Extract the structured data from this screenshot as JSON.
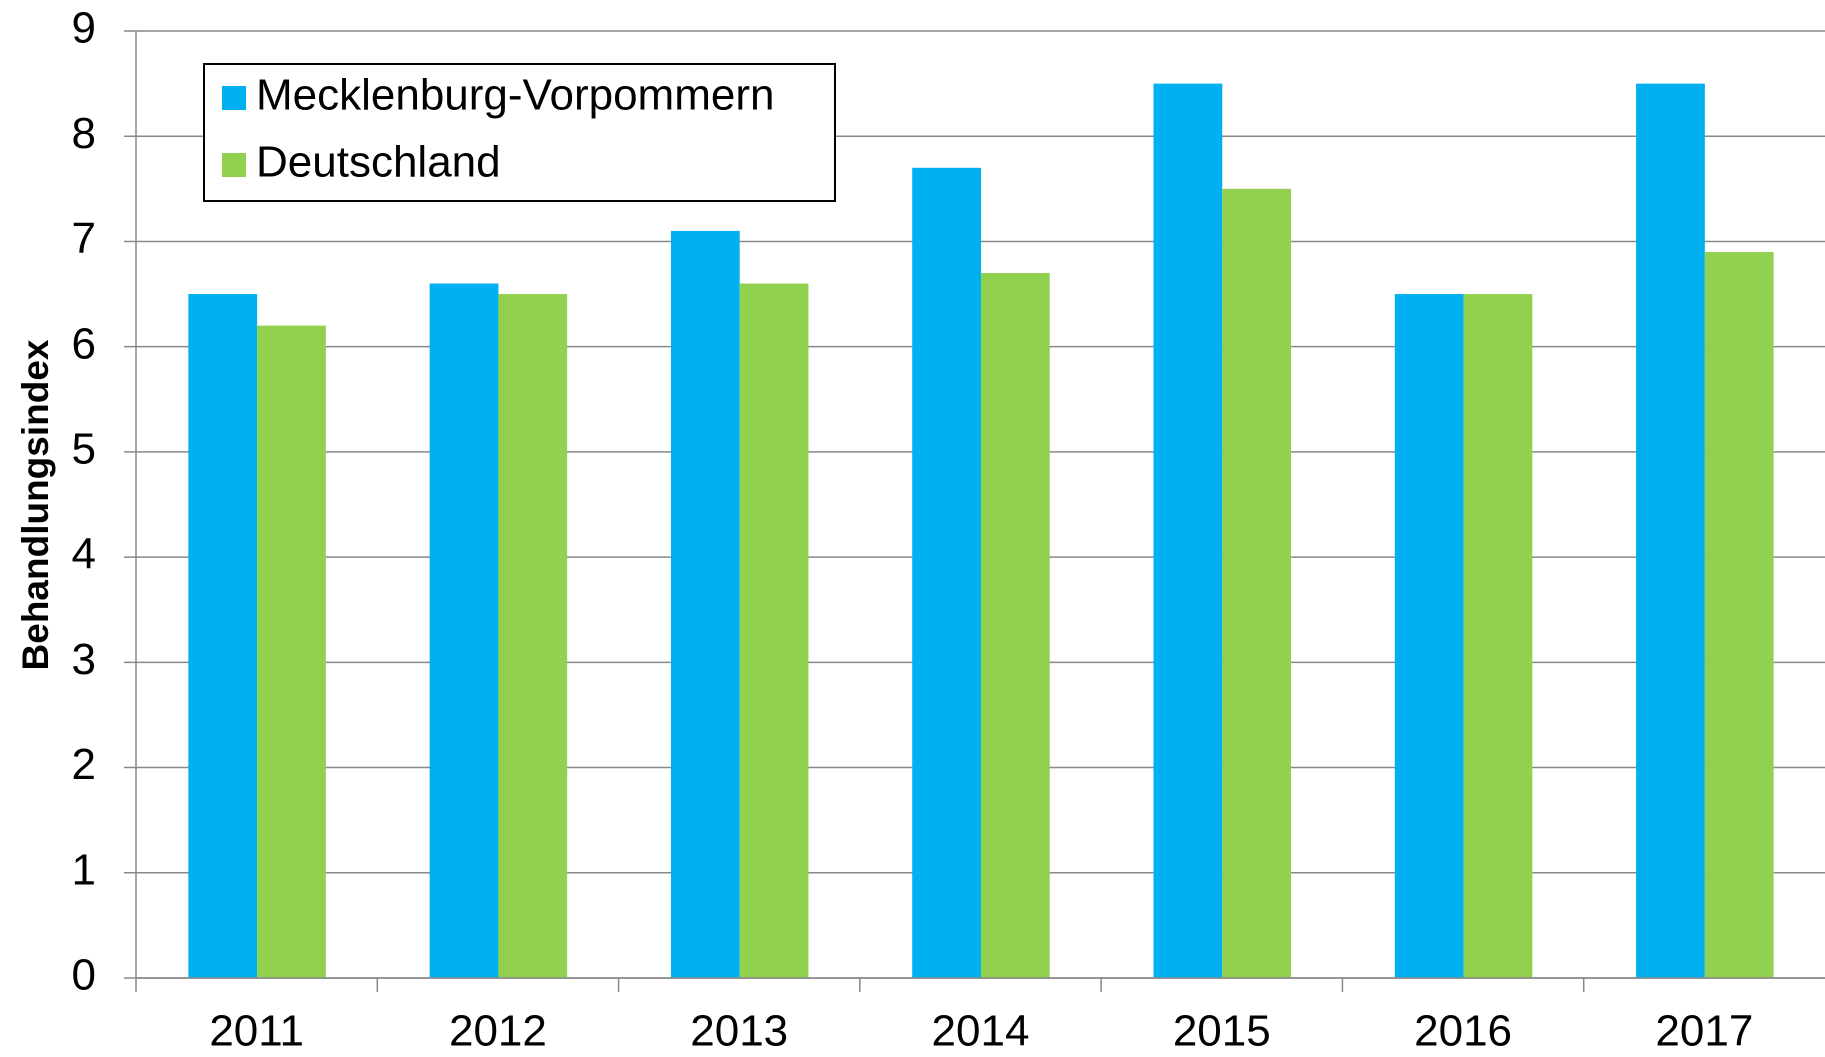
{
  "chart_data": {
    "type": "bar",
    "y_label": "Behandlungsindex",
    "categories": [
      "2011",
      "2012",
      "2013",
      "2014",
      "2015",
      "2016",
      "2017"
    ],
    "series": [
      {
        "name": "Mecklenburg-Vorpommern",
        "color": "#00b0f0",
        "values": [
          6.5,
          6.6,
          7.1,
          7.7,
          8.5,
          6.5,
          8.5
        ]
      },
      {
        "name": "Deutschland",
        "color": "#92d050",
        "values": [
          6.2,
          6.5,
          6.6,
          6.7,
          7.5,
          6.5,
          6.9
        ]
      }
    ],
    "ylim": [
      0,
      9
    ],
    "yticks": [
      0,
      1,
      2,
      3,
      4,
      5,
      6,
      7,
      8,
      9
    ],
    "grid": true,
    "legend": "top-left"
  }
}
